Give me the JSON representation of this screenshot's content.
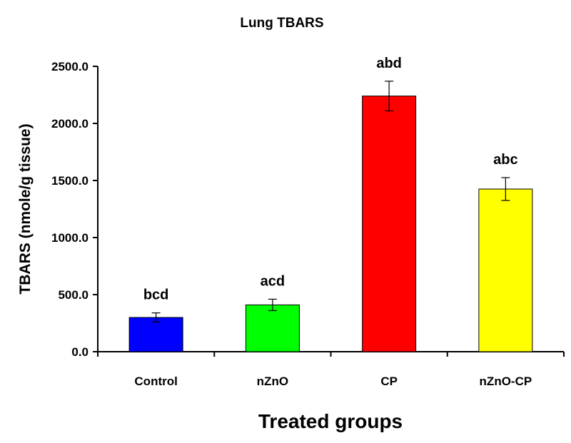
{
  "chart_data": {
    "type": "bar",
    "title": "Lung TBARS",
    "xlabel": "Treated groups",
    "ylabel": "TBARS (nmole/g tissue)",
    "ylim": [
      0,
      2500
    ],
    "yticks": [
      "0.0",
      "500.0",
      "1000.0",
      "1500.0",
      "2000.0",
      "2500.0"
    ],
    "categories": [
      "Control",
      "nZnO",
      "CP",
      "nZnO-CP"
    ],
    "values": [
      300,
      410,
      2240,
      1425
    ],
    "errors": [
      40,
      50,
      130,
      100
    ],
    "significance_labels": [
      "bcd",
      "acd",
      "abd",
      "abc"
    ],
    "colors": [
      "#0000ff",
      "#00ff00",
      "#ff0000",
      "#ffff00"
    ],
    "grid": false,
    "legend": "none"
  }
}
